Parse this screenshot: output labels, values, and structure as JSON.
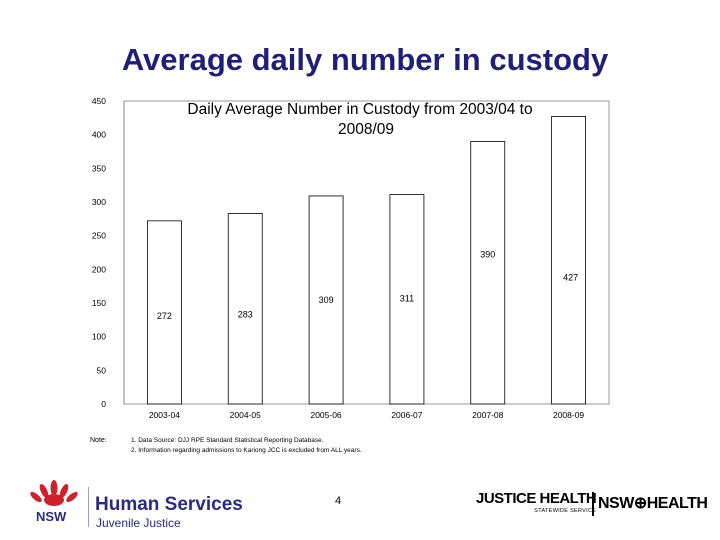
{
  "slide": {
    "title": "Average daily number in custody",
    "page_number": "4"
  },
  "chart_data": {
    "type": "bar",
    "title_line1": "Daily Average Number in Custody from 2003/04 to",
    "title_line2": "2008/09",
    "categories": [
      "2003-04",
      "2004-05",
      "2005-06",
      "2006-07",
      "2007-08",
      "2008-09"
    ],
    "values": [
      272,
      283,
      309,
      311,
      390,
      427
    ],
    "data_labels": [
      "272",
      "283",
      "309",
      "311",
      "390",
      "427"
    ],
    "ylim": [
      0,
      450
    ],
    "yticks": [
      0,
      50,
      100,
      150,
      200,
      250,
      300,
      350,
      400,
      450
    ],
    "grid": false,
    "colors": {
      "bar": "#ffffff",
      "bar_stroke": "#000000",
      "plot_bg": "#ffffff"
    }
  },
  "notes": {
    "label": "Note:",
    "lines": [
      "1. Data Source: DJJ RPE Standard Statistical Reporting Database.",
      "2. Information regarding admissions to Kariong JCC is excluded from ALL years."
    ]
  },
  "footer": {
    "nsw_logo_text": "NSW",
    "human_services": "Human Services",
    "juvenile_justice": "Juvenile Justice",
    "justice_health": "JUSTICE HEALTH",
    "statewide_service": "STATEWIDE SERVICE",
    "nsw_health": "NSW⊕HEALTH",
    "colors": {
      "brand_blue": "#2a2a86",
      "waratah_red": "#d0202a"
    }
  }
}
